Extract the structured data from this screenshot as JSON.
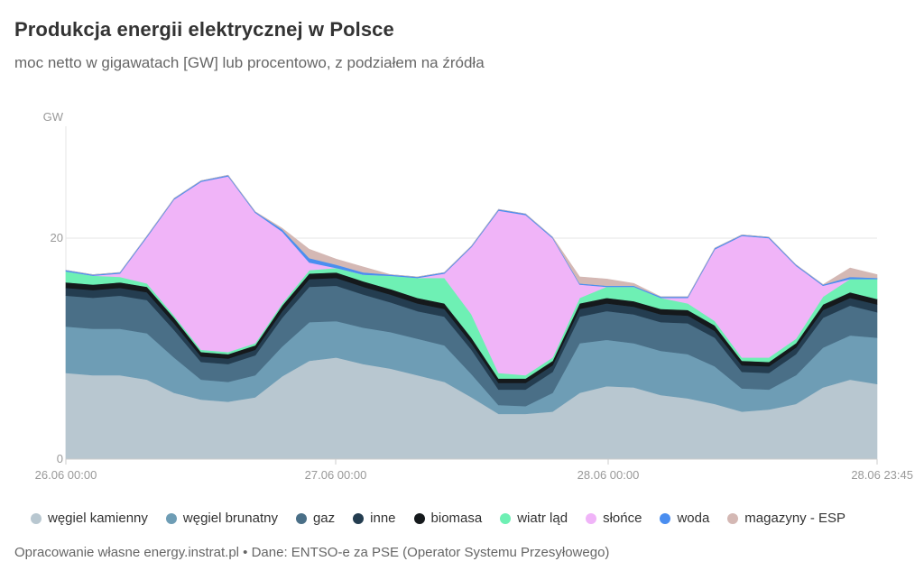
{
  "header": {
    "title": "Produkcja energii elektrycznej w Polsce",
    "subtitle": "moc netto w gigawatach [GW] lub procentowo, z podziałem na źródła"
  },
  "footer": {
    "source": "Opracowanie własne energy.instrat.pl • Dane: ENTSO-e za PSE (Operator Systemu Przesyłowego)"
  },
  "chart_data": {
    "type": "area",
    "stacked": true,
    "title": "Produkcja energii elektrycznej w Polsce",
    "subtitle": "moc netto w gigawatach [GW] lub procentowo, z podziałem na źródła",
    "ylabel": "GW",
    "xlabel": "",
    "ylim": [
      0,
      30
    ],
    "y_ticks": [
      0,
      20
    ],
    "x_range": [
      "26.06 00:00",
      "28.06 23:45"
    ],
    "x_tick_labels": [
      "26.06 00:00",
      "27.06 00:00",
      "28.06 00:00",
      "28.06 23:45"
    ],
    "legend_position": "bottom",
    "x": [
      "26.06 00:00",
      "26.06 03:00",
      "26.06 06:00",
      "26.06 08:00",
      "26.06 10:00",
      "26.06 12:00",
      "26.06 14:00",
      "26.06 16:00",
      "26.06 17:00",
      "26.06 18:00",
      "26.06 20:00",
      "26.06 22:00",
      "27.06 00:00",
      "27.06 03:00",
      "27.06 06:00",
      "27.06 09:00",
      "27.06 12:00",
      "27.06 15:00",
      "27.06 17:00",
      "27.06 19:00",
      "27.06 21:00",
      "28.06 00:00",
      "28.06 03:00",
      "28.06 06:00",
      "28.06 09:00",
      "28.06 12:00",
      "28.06 15:00",
      "28.06 17:00",
      "28.06 19:00",
      "28.06 21:00",
      "28.06 23:45"
    ],
    "series": [
      {
        "name": "węgiel kamienny",
        "color": "#b8c7d0",
        "values": [
          7.8,
          7.6,
          7.6,
          7.2,
          6.0,
          5.4,
          5.2,
          5.6,
          7.5,
          8.9,
          9.2,
          8.6,
          8.2,
          7.6,
          7.0,
          5.6,
          4.1,
          4.1,
          4.3,
          6.0,
          6.6,
          6.5,
          5.8,
          5.5,
          5.0,
          4.3,
          4.5,
          5.0,
          6.5,
          7.2,
          6.8
        ]
      },
      {
        "name": "węgiel brunatny",
        "color": "#6e9db5",
        "values": [
          4.2,
          4.2,
          4.2,
          4.2,
          3.2,
          1.8,
          1.8,
          2.0,
          2.7,
          3.5,
          3.3,
          3.3,
          3.3,
          3.3,
          3.3,
          2.1,
          0.8,
          0.7,
          1.7,
          4.5,
          4.2,
          4.0,
          4.0,
          4.0,
          3.4,
          2.1,
          1.8,
          2.6,
          3.6,
          4.0,
          4.2
        ]
      },
      {
        "name": "gaz",
        "color": "#4a6f87",
        "values": [
          2.8,
          2.8,
          3.0,
          3.0,
          2.5,
          1.6,
          1.6,
          1.8,
          2.6,
          3.2,
          3.2,
          3.0,
          2.7,
          2.5,
          2.6,
          2.2,
          1.4,
          1.5,
          1.9,
          2.4,
          2.6,
          2.6,
          2.6,
          2.8,
          2.6,
          1.5,
          1.5,
          1.9,
          2.7,
          2.7,
          2.3
        ]
      },
      {
        "name": "inne",
        "color": "#243d50",
        "values": [
          0.7,
          0.7,
          0.7,
          0.7,
          0.6,
          0.5,
          0.5,
          0.5,
          0.6,
          0.7,
          0.7,
          0.7,
          0.7,
          0.7,
          0.7,
          0.6,
          0.6,
          0.6,
          0.6,
          0.7,
          0.7,
          0.7,
          0.7,
          0.7,
          0.6,
          0.6,
          0.6,
          0.6,
          0.7,
          0.7,
          0.7
        ]
      },
      {
        "name": "biomasa",
        "color": "#15191c",
        "values": [
          0.5,
          0.5,
          0.5,
          0.5,
          0.5,
          0.4,
          0.4,
          0.4,
          0.5,
          0.5,
          0.5,
          0.5,
          0.5,
          0.5,
          0.5,
          0.5,
          0.4,
          0.4,
          0.4,
          0.5,
          0.5,
          0.5,
          0.5,
          0.5,
          0.5,
          0.4,
          0.4,
          0.4,
          0.5,
          0.5,
          0.5
        ]
      },
      {
        "name": "wiatr ląd",
        "color": "#6ef0b4",
        "values": [
          1.0,
          0.8,
          0.5,
          0.3,
          0.2,
          0.2,
          0.2,
          0.2,
          0.2,
          0.3,
          0.4,
          0.6,
          1.2,
          1.8,
          2.3,
          2.1,
          0.5,
          0.3,
          0.3,
          0.5,
          1.0,
          1.3,
          1.0,
          0.6,
          0.4,
          0.3,
          0.4,
          0.4,
          0.7,
          1.2,
          1.8
        ]
      },
      {
        "name": "słońce",
        "color": "#f0b4f8",
        "values": [
          0.0,
          0.0,
          0.3,
          4.2,
          10.5,
          15.2,
          15.9,
          11.8,
          6.5,
          0.7,
          0.0,
          0.0,
          0.0,
          0.0,
          0.4,
          6.1,
          14.7,
          14.5,
          10.8,
          1.2,
          0.0,
          0.0,
          0.0,
          0.5,
          6.5,
          11.0,
          10.8,
          6.6,
          1.0,
          0.0,
          0.0
        ]
      },
      {
        "name": "woda",
        "color": "#4a8ef0",
        "values": [
          0.1,
          0.1,
          0.1,
          0.1,
          0.1,
          0.1,
          0.1,
          0.1,
          0.2,
          0.4,
          0.3,
          0.2,
          0.1,
          0.1,
          0.1,
          0.1,
          0.1,
          0.1,
          0.1,
          0.1,
          0.1,
          0.1,
          0.1,
          0.1,
          0.1,
          0.1,
          0.1,
          0.1,
          0.1,
          0.2,
          0.1
        ]
      },
      {
        "name": "magazyny - ESP",
        "color": "#d4b8b4",
        "values": [
          0.0,
          0.0,
          0.0,
          0.0,
          0.0,
          0.0,
          0.0,
          0.0,
          0.1,
          0.8,
          0.5,
          0.5,
          0.0,
          0.0,
          0.0,
          0.0,
          0.0,
          0.0,
          0.0,
          0.6,
          0.6,
          0.2,
          0.0,
          0.0,
          0.0,
          0.0,
          0.0,
          0.0,
          0.0,
          0.8,
          0.3
        ]
      }
    ]
  }
}
